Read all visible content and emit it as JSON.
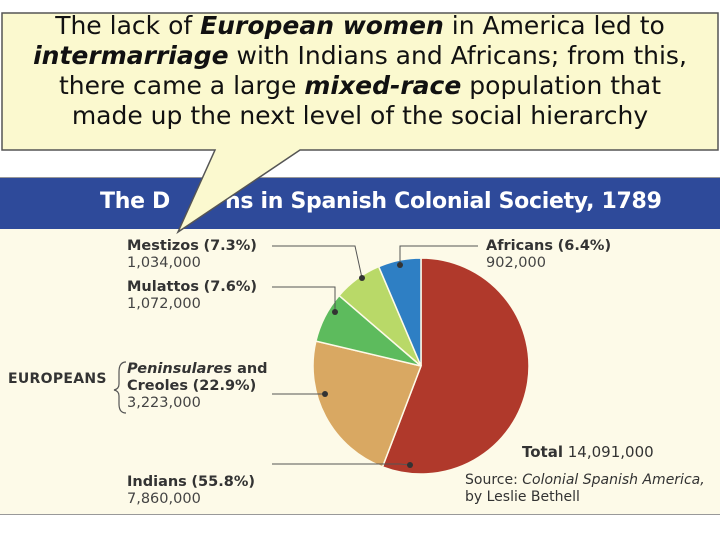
{
  "callout": {
    "line1_a": "The lack of ",
    "line1_b": "European women",
    "line1_c": " in America led to",
    "line2_a": "intermarriage",
    "line2_b": " with Indians and Africans; from this,",
    "line3_a": "there came a large ",
    "line3_b": "mixed-race",
    "line3_c": " population that",
    "line4": "made up the next level of the social hierarchy"
  },
  "chart_data": {
    "type": "pie",
    "title": "The Divisions in Spanish Colonial Society, 1789",
    "title_visible": "The D",
    "title_visible_tail": "ns in Spanish Colonial Society, 1789",
    "slices": [
      {
        "name": "Indians",
        "percent": 55.8,
        "population": "7,860,000",
        "pct_label": "(55.8%)",
        "color": "#b0392b"
      },
      {
        "name": "Peninsulares and Creoles",
        "percent": 22.9,
        "population": "3,223,000",
        "pct_label": "(22.9%)",
        "color": "#d9a862"
      },
      {
        "name": "Mulattos",
        "percent": 7.6,
        "population": "1,072,000",
        "pct_label": "(7.6%)",
        "color": "#5dbb5d"
      },
      {
        "name": "Mestizos",
        "percent": 7.3,
        "population": "1,034,000",
        "pct_label": "(7.3%)",
        "color": "#b9d968"
      },
      {
        "name": "Africans",
        "percent": 6.4,
        "population": "902,000",
        "pct_label": "(6.4%)",
        "color": "#2e7fc4"
      }
    ],
    "group_label": "EUROPEANS",
    "peninsulares_line1": "Peninsulares",
    "peninsulares_and": " and",
    "creoles": "Creoles",
    "total_label": "Total",
    "total_value": "14,091,000",
    "source_prefix": "Source: ",
    "source_title": "Colonial Spanish America,",
    "source_author": "by Leslie Bethell"
  },
  "colors": {
    "title_bar": "#2e4a9a",
    "panel": "#fdfae8",
    "callout": "#fbf9cf"
  }
}
